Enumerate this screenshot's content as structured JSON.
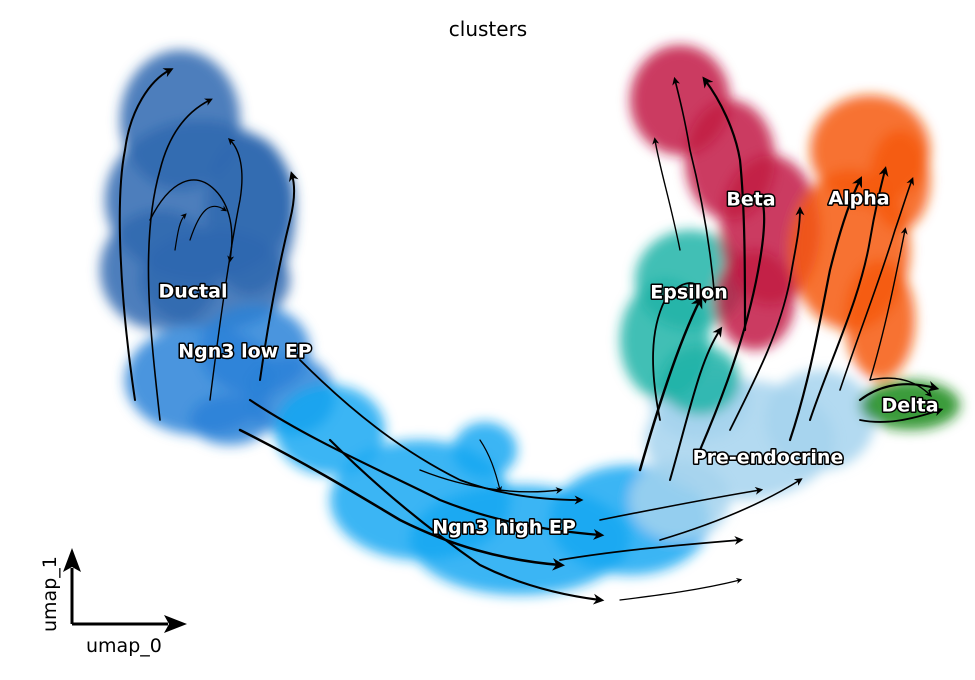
{
  "chart_data": {
    "type": "scatter",
    "title": "clusters",
    "xlabel": "umap_0",
    "ylabel": "umap_1",
    "grid": false,
    "legend": "on data",
    "overlay": "velocity streamlines with arrowheads",
    "series": [
      {
        "name": "Ductal",
        "color": "#2f68b0"
      },
      {
        "name": "Ngn3 low EP",
        "color": "#2b82d8"
      },
      {
        "name": "Ngn3 high EP",
        "color": "#14a8f2"
      },
      {
        "name": "Pre-endocrine",
        "color": "#a6d4ef"
      },
      {
        "name": "Beta",
        "color": "#c21a44"
      },
      {
        "name": "Alpha",
        "color": "#f65a0f"
      },
      {
        "name": "Epsilon",
        "color": "#20b4a8"
      },
      {
        "name": "Delta",
        "color": "#178a1a"
      }
    ]
  }
}
